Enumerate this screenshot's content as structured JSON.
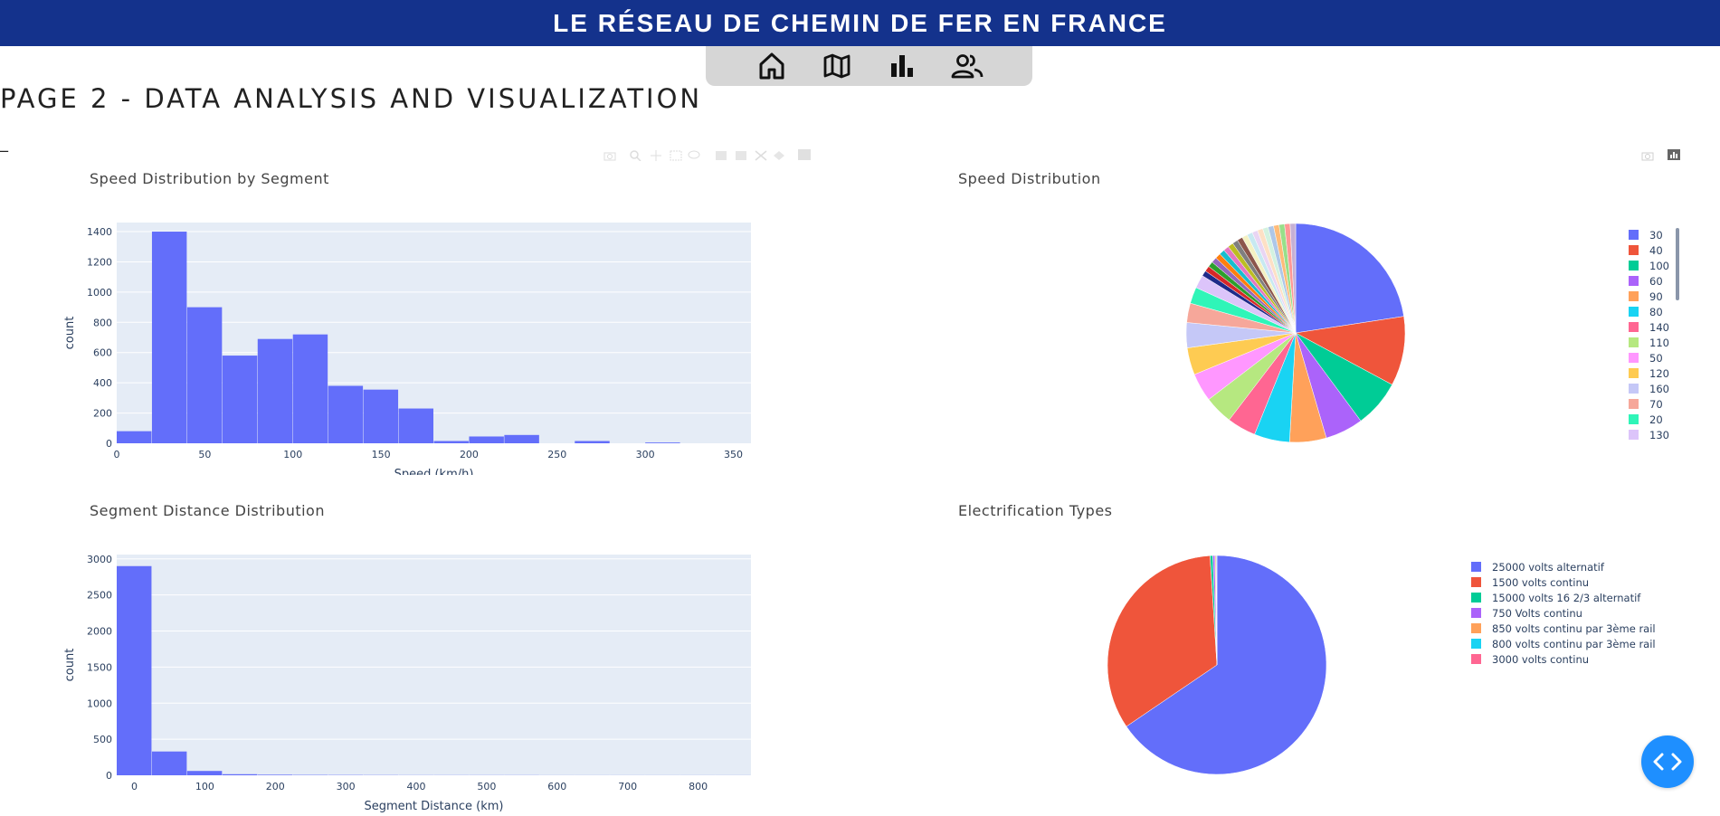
{
  "header": {
    "title": "LE RÉSEAU DE CHEMIN DE FER EN FRANCE"
  },
  "nav": {
    "icons": [
      "home-icon",
      "map-icon",
      "bar-chart-icon",
      "users-icon"
    ]
  },
  "page": {
    "heading": "PAGE 2 - DATA ANALYSIS AND VISUALIZATION",
    "dash": "_"
  },
  "colors": {
    "banner": "#14328c",
    "bar": "#636efa",
    "plot_bg": "#e5ecf6",
    "fab": "#1e8fff"
  },
  "chart_data": [
    {
      "id": "speed_hist",
      "type": "bar",
      "title": "Speed Distribution by Segment",
      "xlabel": "Speed (km/h)",
      "ylabel": "count",
      "bin_start": 0,
      "bin_width": 20,
      "values": [
        80,
        1400,
        900,
        580,
        690,
        720,
        380,
        355,
        230,
        15,
        45,
        55,
        0,
        15,
        0,
        5,
        0,
        0
      ],
      "xlim": [
        0,
        360
      ],
      "ylim": [
        0,
        1460
      ],
      "xticks": [
        0,
        50,
        100,
        150,
        200,
        250,
        300,
        350
      ],
      "yticks": [
        0,
        200,
        400,
        600,
        800,
        1000,
        1200,
        1400
      ]
    },
    {
      "id": "speed_pie",
      "type": "pie",
      "title": "Speed Distribution",
      "labels": [
        "30",
        "40",
        "100",
        "60",
        "90",
        "80",
        "140",
        "110",
        "50",
        "120",
        "160",
        "70",
        "20",
        "130"
      ],
      "values": [
        0.2258,
        0.1026,
        0.0702,
        0.0562,
        0.0541,
        0.0524,
        0.0426,
        0.0421,
        0.042,
        0.0401,
        0.0371,
        0.0286,
        0.0242,
        0.0196
      ],
      "other_small_slices": 0.1624,
      "colors": [
        "#636efa",
        "#EF553B",
        "#00cc96",
        "#ab63fa",
        "#FFA15A",
        "#19d3f3",
        "#FF6692",
        "#B6E880",
        "#FF97FF",
        "#FECB52",
        "#c5c8f7",
        "#f6a79a",
        "#2ff5b8",
        "#dcc4fa"
      ]
    },
    {
      "id": "distance_hist",
      "type": "bar",
      "title": "Segment Distance Distribution",
      "xlabel": "Segment Distance (km)",
      "ylabel": "count",
      "bin_start": -25,
      "bin_width": 50,
      "values": [
        2900,
        330,
        60,
        15,
        8,
        5,
        4,
        3,
        2,
        2,
        2,
        2,
        1,
        1,
        1,
        1,
        1,
        1
      ],
      "xlim": [
        -25,
        875
      ],
      "ylim": [
        0,
        3060
      ],
      "xticks": [
        0,
        100,
        200,
        300,
        400,
        500,
        600,
        700,
        800
      ],
      "yticks": [
        0,
        500,
        1000,
        1500,
        2000,
        2500,
        3000
      ]
    },
    {
      "id": "electrification_pie",
      "type": "pie",
      "title": "Electrification Types",
      "labels": [
        "25000 volts alternatif",
        "1500 volts continu",
        "15000 volts 16 2/3 alternatif",
        "750 Volts continu",
        "850 volts continu par 3ème rail",
        "800 volts continu par 3ème rail",
        "3000 volts continu"
      ],
      "values": [
        0.655,
        0.335,
        0.004,
        0.003,
        0.0015,
        0.001,
        0.0005
      ],
      "colors": [
        "#636efa",
        "#EF553B",
        "#00cc96",
        "#ab63fa",
        "#FFA15A",
        "#19d3f3",
        "#FF6692"
      ]
    }
  ]
}
